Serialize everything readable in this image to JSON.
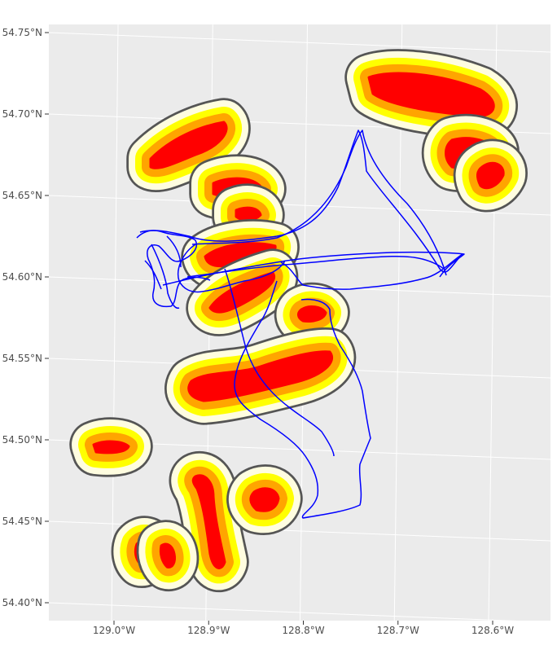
{
  "map": {
    "panel_background": "#ebebeb",
    "graticule_color": "#ffffff",
    "track_color": "#0000ff",
    "buffer_colors": {
      "outer": "#fffde0",
      "yellow": "#ffff00",
      "orange": "#ffa500",
      "core": "#ff0000"
    },
    "x_axis": {
      "ticks": [
        {
          "value": -129.0,
          "label": "129.0°W"
        },
        {
          "value": -128.9,
          "label": "128.9°W"
        },
        {
          "value": -128.8,
          "label": "128.8°W"
        },
        {
          "value": -128.7,
          "label": "128.7°W"
        },
        {
          "value": -128.6,
          "label": "128.6°W"
        }
      ]
    },
    "y_axis": {
      "ticks": [
        {
          "value": 54.75,
          "label": "54.75°N"
        },
        {
          "value": 54.7,
          "label": "54.70°N"
        },
        {
          "value": 54.65,
          "label": "54.65°N"
        },
        {
          "value": 54.6,
          "label": "54.60°N"
        },
        {
          "value": 54.55,
          "label": "54.55°N"
        },
        {
          "value": 54.5,
          "label": "54.50°N"
        },
        {
          "value": 54.45,
          "label": "54.45°N"
        },
        {
          "value": 54.4,
          "label": "54.40°N"
        }
      ]
    }
  }
}
